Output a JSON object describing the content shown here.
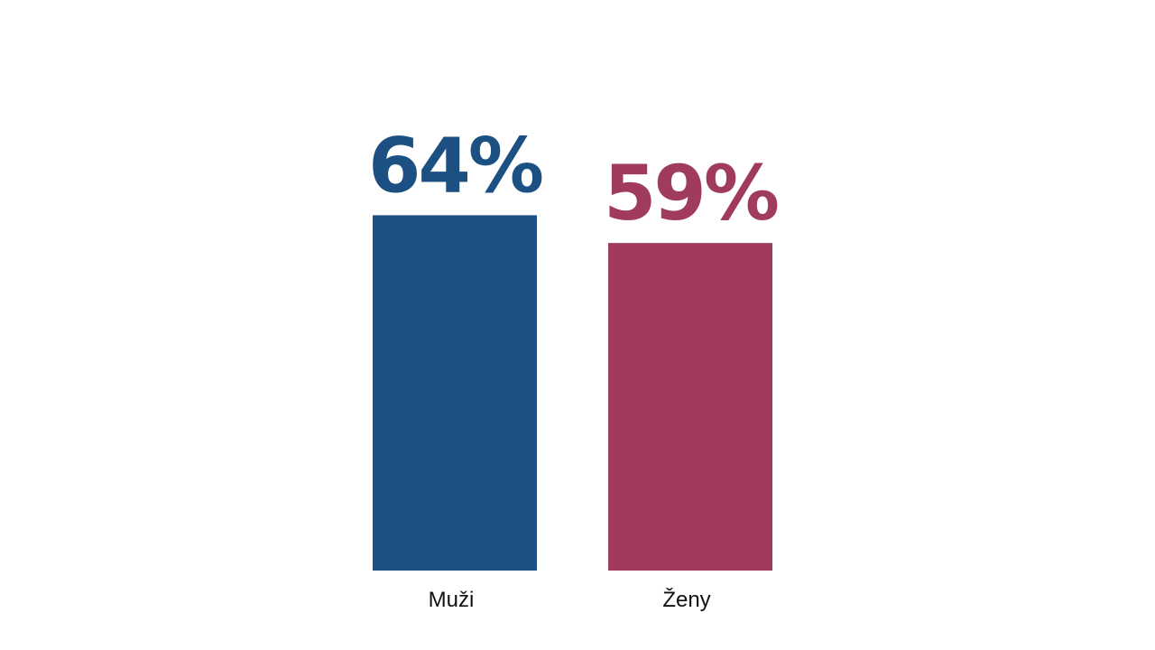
{
  "chart_data": {
    "type": "bar",
    "title": "",
    "xlabel": "",
    "ylabel": "",
    "categories": [
      "Muži",
      "Ženy"
    ],
    "values": [
      64,
      59
    ],
    "value_labels": [
      "64%",
      "59%"
    ],
    "unit": "%",
    "ylim": [
      0,
      100
    ],
    "grid": false,
    "legend": "none",
    "colors": [
      "#1c5083",
      "#a03b5f"
    ]
  }
}
